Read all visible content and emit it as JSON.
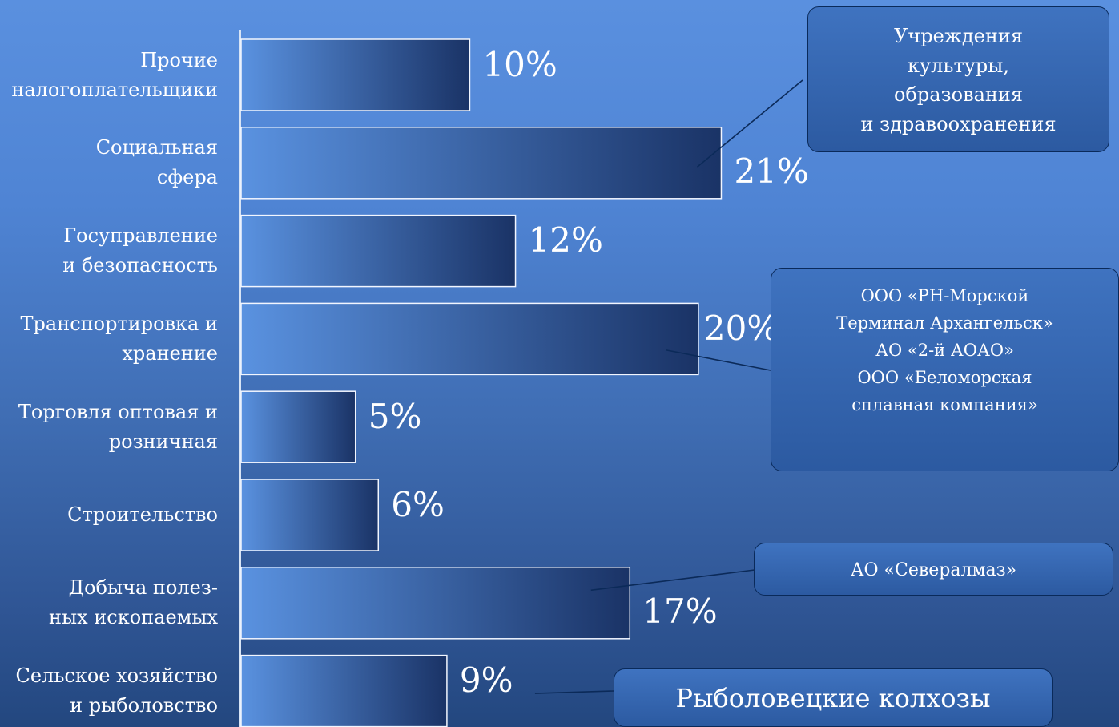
{
  "chart_data": {
    "type": "bar",
    "orientation": "horizontal",
    "categories": [
      "Прочие\nналогоплательщики",
      "Социальная\nсфера",
      "Госуправление\nи безопасность",
      "Транспортировка и\nхранение",
      "Торговля оптовая и\nрозничная",
      "Строительство",
      "Добыча полез-\nных ископаемых",
      "Сельское хозяйство\nи рыболовство"
    ],
    "values": [
      10,
      21,
      12,
      20,
      5,
      6,
      17,
      9
    ],
    "value_labels": [
      "10%",
      "21%",
      "12%",
      "20%",
      "5%",
      "6%",
      "17%",
      "9%"
    ],
    "xlim": [
      0,
      22
    ],
    "grid": false,
    "annotations": [
      {
        "text": "Учреждения\nкультуры,\nобразования\nи здравоохранения",
        "category_index": 1
      },
      {
        "text": "ООО «РН-Морской\nТерминал Архангельск»\nАО «2-й АОАО»\nООО «Беломорская\nсплавная компания»",
        "category_index": 3
      },
      {
        "text": "АО «Севералмаз»",
        "category_index": 6
      },
      {
        "text": "Рыболовецкие колхозы",
        "category_index": 7
      }
    ]
  },
  "colors": {
    "background_top": "#5a90df",
    "background_bottom": "#23477f",
    "bar_start": "#5a92e0",
    "bar_end": "#1a3366",
    "axis": "#d8e4f5",
    "callout_fill": "#3567b1",
    "callout_border": "#0a2a5a",
    "text": "#ffffff"
  }
}
